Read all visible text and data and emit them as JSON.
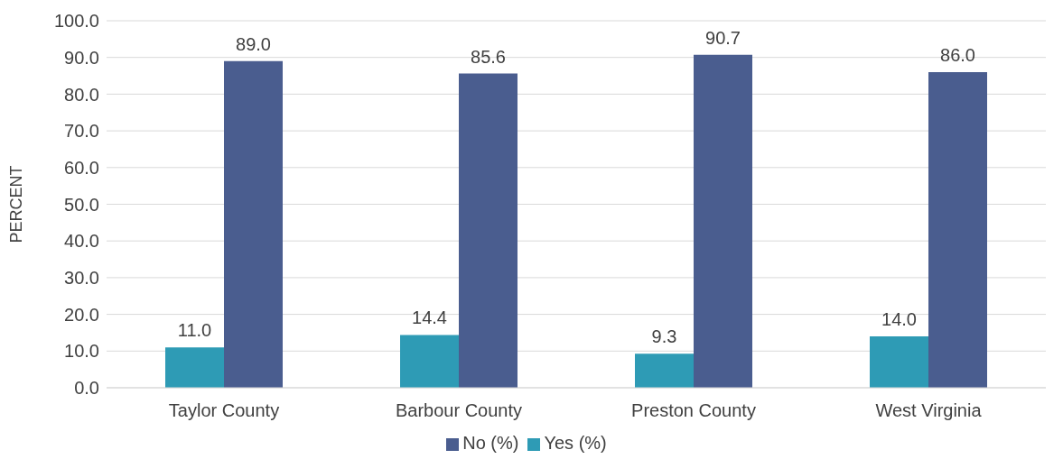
{
  "chart_data": {
    "type": "bar",
    "ylabel": "PERCENT",
    "categories": [
      "Taylor County",
      "Barbour County",
      "Preston County",
      "West Virginia"
    ],
    "series": [
      {
        "name": "Yes (%)",
        "color": "#2e9bb5",
        "values": [
          11.0,
          14.4,
          9.3,
          14.0
        ],
        "value_labels": [
          "11.0",
          "14.4",
          "9.3",
          "14.0"
        ]
      },
      {
        "name": "No (%)",
        "color": "#4a5d8f",
        "values": [
          89.0,
          85.6,
          90.7,
          86.0
        ],
        "value_labels": [
          "89.0",
          "85.6",
          "90.7",
          "86.0"
        ]
      }
    ],
    "ylim": [
      0,
      100
    ],
    "yticks": [
      {
        "value": 0,
        "label": "0.0"
      },
      {
        "value": 10,
        "label": "10.0"
      },
      {
        "value": 20,
        "label": "20.0"
      },
      {
        "value": 30,
        "label": "30.0"
      },
      {
        "value": 40,
        "label": "40.0"
      },
      {
        "value": 50,
        "label": "50.0"
      },
      {
        "value": 60,
        "label": "60.0"
      },
      {
        "value": 70,
        "label": "70.0"
      },
      {
        "value": 80,
        "label": "80.0"
      },
      {
        "value": 90,
        "label": "90.0"
      },
      {
        "value": 100,
        "label": "100.0"
      }
    ],
    "grid": "y",
    "legend": "bottom"
  }
}
